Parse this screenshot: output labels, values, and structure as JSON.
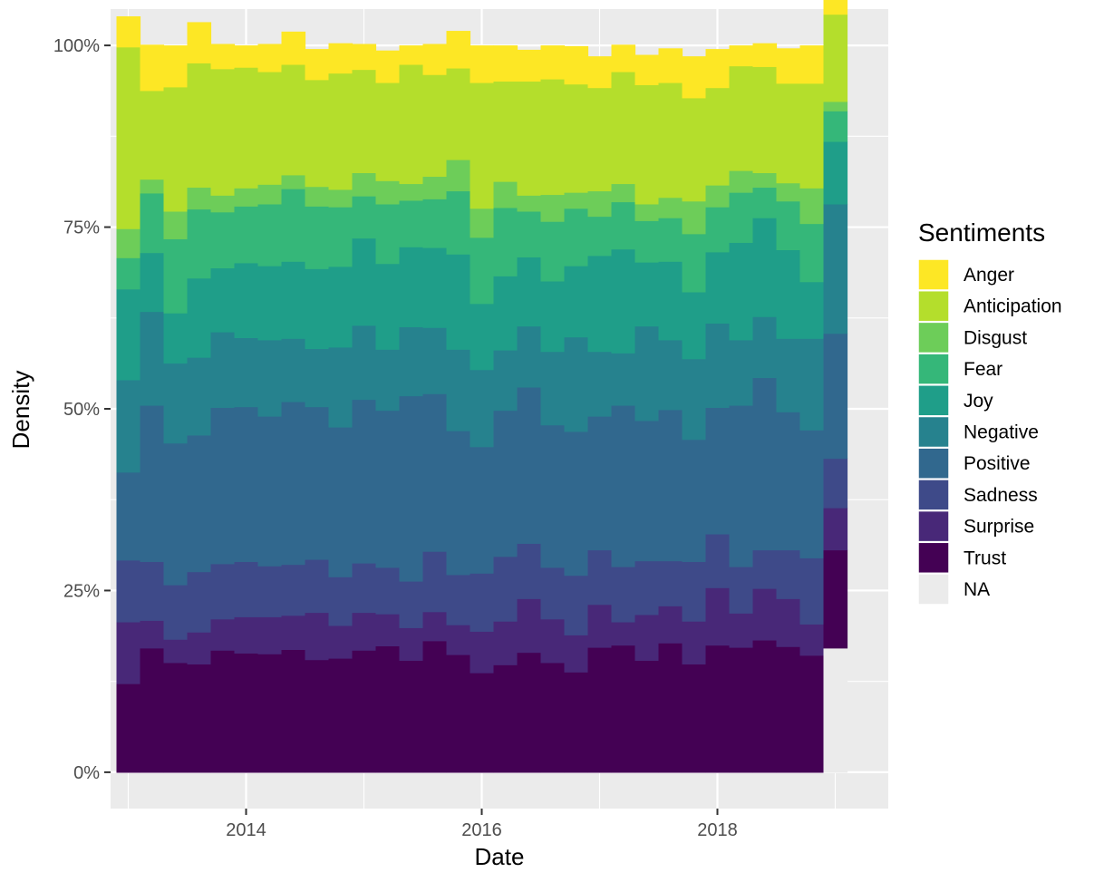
{
  "chart_data": {
    "type": "area",
    "subtype": "stacked-100-percent-histogram",
    "title": "",
    "xlabel": "Date",
    "ylabel": "Density",
    "x_ticks": [
      "2014",
      "2016",
      "2018"
    ],
    "y_ticks": [
      "0%",
      "25%",
      "50%",
      "75%",
      "100%"
    ],
    "xlim": [
      2012.85,
      2019.45
    ],
    "ylim": [
      -0.05,
      1.05
    ],
    "grid": true,
    "legend": {
      "title": "Sentiments",
      "position": "right"
    },
    "bins": [
      2013.0,
      2013.2,
      2013.4,
      2013.6,
      2013.8,
      2014.0,
      2014.2,
      2014.4,
      2014.6,
      2014.8,
      2015.0,
      2015.2,
      2015.4,
      2015.6,
      2015.8,
      2016.0,
      2016.2,
      2016.4,
      2016.6,
      2016.8,
      2017.0,
      2017.2,
      2017.4,
      2017.6,
      2017.8,
      2018.0,
      2018.2,
      2018.4,
      2018.6,
      2018.8,
      2019.0
    ],
    "bin_width": 0.2,
    "series": [
      {
        "name": "Trust",
        "color": "#440154",
        "values": [
          0.122,
          0.171,
          0.151,
          0.149,
          0.168,
          0.164,
          0.163,
          0.169,
          0.155,
          0.157,
          0.168,
          0.174,
          0.154,
          0.181,
          0.162,
          0.137,
          0.148,
          0.165,
          0.151,
          0.138,
          0.172,
          0.175,
          0.154,
          0.178,
          0.149,
          0.175,
          0.172,
          0.182,
          0.173,
          0.161,
          0.135
        ]
      },
      {
        "name": "Surprise",
        "color": "#482878",
        "values": [
          0.085,
          0.038,
          0.032,
          0.044,
          0.043,
          0.05,
          0.051,
          0.047,
          0.065,
          0.045,
          0.052,
          0.044,
          0.045,
          0.04,
          0.041,
          0.057,
          0.06,
          0.074,
          0.06,
          0.051,
          0.059,
          0.032,
          0.063,
          0.051,
          0.059,
          0.079,
          0.047,
          0.071,
          0.066,
          0.043,
          0.058
        ]
      },
      {
        "name": "Sadness",
        "color": "#3E4A89",
        "values": [
          0.085,
          0.081,
          0.075,
          0.083,
          0.076,
          0.076,
          0.07,
          0.07,
          0.073,
          0.067,
          0.068,
          0.064,
          0.064,
          0.083,
          0.069,
          0.08,
          0.089,
          0.076,
          0.071,
          0.082,
          0.075,
          0.076,
          0.074,
          0.062,
          0.082,
          0.074,
          0.064,
          0.053,
          0.067,
          0.091,
          0.068
        ]
      },
      {
        "name": "Positive",
        "color": "#31688E",
        "values": [
          0.121,
          0.215,
          0.195,
          0.188,
          0.215,
          0.213,
          0.206,
          0.224,
          0.21,
          0.206,
          0.225,
          0.216,
          0.255,
          0.217,
          0.198,
          0.174,
          0.201,
          0.215,
          0.196,
          0.198,
          0.184,
          0.222,
          0.193,
          0.208,
          0.168,
          0.174,
          0.222,
          0.237,
          0.19,
          0.176,
          0.172
        ]
      },
      {
        "name": "Negative",
        "color": "#26828E",
        "values": [
          0.127,
          0.129,
          0.11,
          0.107,
          0.104,
          0.095,
          0.105,
          0.087,
          0.08,
          0.11,
          0.102,
          0.084,
          0.095,
          0.091,
          0.112,
          0.106,
          0.083,
          0.084,
          0.101,
          0.13,
          0.089,
          0.072,
          0.13,
          0.096,
          0.111,
          0.116,
          0.09,
          0.084,
          0.101,
          0.126,
          0.178
        ]
      },
      {
        "name": "Joy",
        "color": "#1F9E89",
        "values": [
          0.125,
          0.081,
          0.069,
          0.109,
          0.088,
          0.103,
          0.102,
          0.106,
          0.11,
          0.111,
          0.12,
          0.118,
          0.11,
          0.11,
          0.131,
          0.091,
          0.102,
          0.095,
          0.097,
          0.098,
          0.132,
          0.143,
          0.088,
          0.108,
          0.092,
          0.098,
          0.134,
          0.136,
          0.122,
          0.078,
          0.086
        ]
      },
      {
        "name": "Fear",
        "color": "#35B779",
        "values": [
          0.043,
          0.082,
          0.102,
          0.095,
          0.077,
          0.078,
          0.085,
          0.1,
          0.086,
          0.082,
          0.058,
          0.082,
          0.064,
          0.067,
          0.087,
          0.091,
          0.094,
          0.063,
          0.082,
          0.079,
          0.054,
          0.065,
          0.057,
          0.06,
          0.08,
          0.062,
          0.069,
          0.042,
          0.067,
          0.08,
          0.042
        ]
      },
      {
        "name": "Disgust",
        "color": "#6DCD59",
        "values": [
          0.04,
          0.019,
          0.038,
          0.03,
          0.023,
          0.025,
          0.027,
          0.019,
          0.027,
          0.024,
          0.032,
          0.032,
          0.023,
          0.031,
          0.043,
          0.04,
          0.036,
          0.022,
          0.037,
          0.022,
          0.035,
          0.025,
          0.023,
          0.028,
          0.045,
          0.03,
          0.03,
          0.02,
          0.025,
          0.049,
          0.013
        ]
      },
      {
        "name": "Anticipation",
        "color": "#B4DE2C",
        "values": [
          0.25,
          0.122,
          0.171,
          0.171,
          0.174,
          0.166,
          0.155,
          0.152,
          0.147,
          0.16,
          0.142,
          0.135,
          0.164,
          0.14,
          0.126,
          0.173,
          0.138,
          0.157,
          0.159,
          0.149,
          0.142,
          0.154,
          0.164,
          0.158,
          0.142,
          0.134,
          0.144,
          0.146,
          0.137,
          0.144,
          0.12
        ]
      },
      {
        "name": "Anger",
        "color": "#FDE725",
        "values": [
          0.042,
          0.063,
          0.057,
          0.056,
          0.034,
          0.03,
          0.038,
          0.045,
          0.042,
          0.041,
          0.035,
          0.044,
          0.026,
          0.042,
          0.051,
          0.051,
          0.049,
          0.043,
          0.046,
          0.052,
          0.043,
          0.037,
          0.041,
          0.047,
          0.057,
          0.053,
          0.028,
          0.032,
          0.048,
          0.052,
          0.03
        ]
      },
      {
        "name": "NA",
        "color": "#EBEBEB",
        "values": [
          0,
          0,
          0,
          0,
          0,
          0,
          0,
          0,
          0,
          0,
          0,
          0,
          0,
          0,
          0,
          0,
          0,
          0,
          0,
          0,
          0,
          0,
          0,
          0,
          0,
          0,
          0,
          0,
          0,
          0,
          0.171
        ]
      }
    ],
    "stack_order_bottom_to_top": [
      "NA",
      "Trust",
      "Surprise",
      "Sadness",
      "Positive",
      "Negative",
      "Joy",
      "Fear",
      "Disgust",
      "Anticipation",
      "Anger"
    ]
  }
}
